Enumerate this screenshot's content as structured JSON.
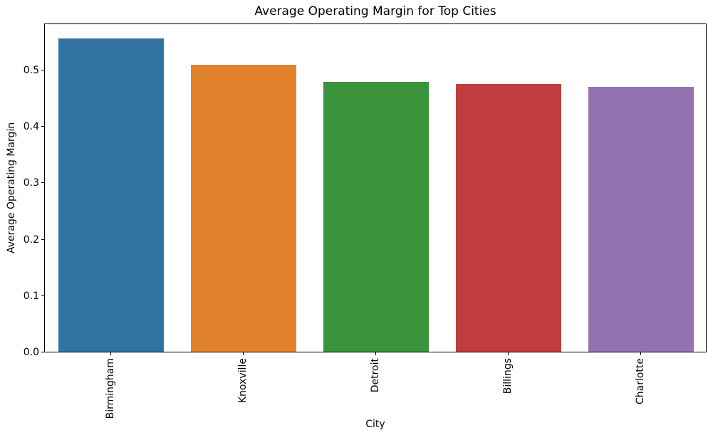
{
  "chart_data": {
    "type": "bar",
    "title": "Average Operating Margin for Top Cities",
    "xlabel": "City",
    "ylabel": "Average Operating Margin",
    "categories": [
      "Birmingham",
      "Knoxville",
      "Detroit",
      "Billings",
      "Charlotte"
    ],
    "values": [
      0.555,
      0.509,
      0.478,
      0.474,
      0.469
    ],
    "bar_colors": [
      "#3274a1",
      "#e1812c",
      "#3a923a",
      "#c03d3e",
      "#9372b2"
    ],
    "ylim": [
      0,
      0.583
    ],
    "yticks": [
      0.0,
      0.1,
      0.2,
      0.3,
      0.4,
      0.5
    ],
    "ytick_labels": [
      "0.0",
      "0.1",
      "0.2",
      "0.3",
      "0.4",
      "0.5"
    ],
    "grid": false,
    "legend_position": "none",
    "background_color": "#ffffff",
    "axis_color": "#000000",
    "text_color": "#000000"
  }
}
